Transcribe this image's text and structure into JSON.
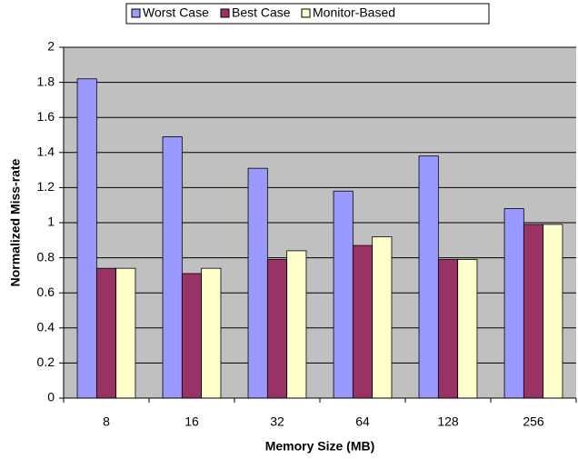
{
  "chart_data": {
    "type": "bar",
    "x_label": "Memory Size (MB)",
    "y_label": "Normalized Miss-rate",
    "categories": [
      "8",
      "16",
      "32",
      "64",
      "128",
      "256"
    ],
    "series": [
      {
        "name": "Worst Case",
        "color": "#9999ff",
        "values": [
          1.82,
          1.49,
          1.31,
          1.18,
          1.38,
          1.08
        ]
      },
      {
        "name": "Best Case",
        "color": "#993366",
        "values": [
          0.74,
          0.71,
          0.79,
          0.87,
          0.79,
          0.99
        ]
      },
      {
        "name": "Monitor-Based",
        "color": "#ffffcc",
        "values": [
          0.74,
          0.74,
          0.84,
          0.92,
          0.79,
          0.99
        ]
      }
    ],
    "ylim": [
      0,
      2
    ],
    "yticks": [
      0,
      0.2,
      0.4,
      0.6,
      0.8,
      1,
      1.2,
      1.4,
      1.6,
      1.8,
      2
    ],
    "grid": true,
    "legend": "top"
  }
}
